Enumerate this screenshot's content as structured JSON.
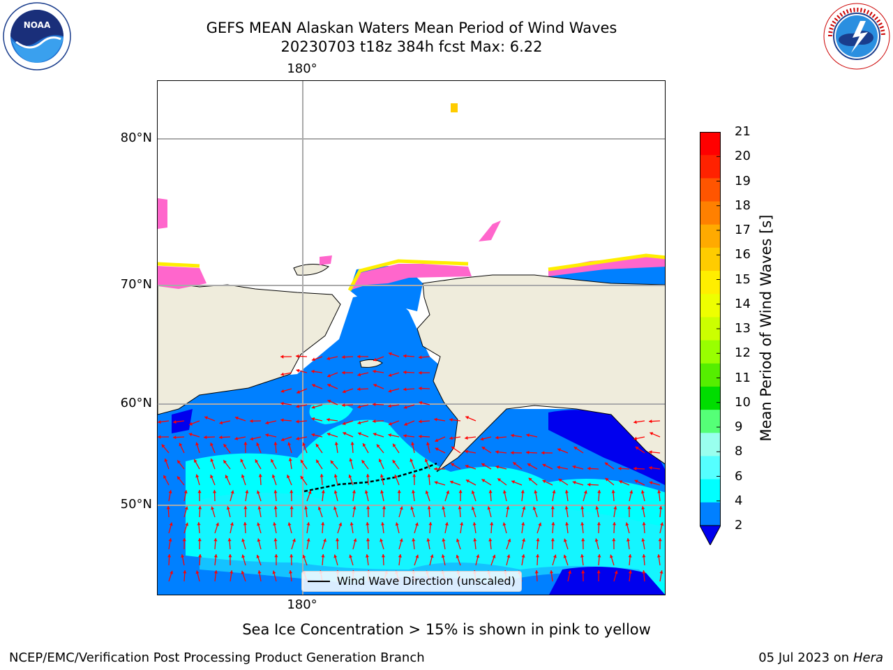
{
  "header": {
    "title_line1": "GEFS MEAN Alaskan Waters Mean Period of Wind Waves",
    "title_line2": "20230703 t18z 384h fcst   Max: 6.22"
  },
  "logos": {
    "left": {
      "text": "NOAA",
      "ring_text": "NATIONAL OCEANIC AND ATMOSPHERIC ADMINISTRATION · U.S. DEPARTMENT OF COMMERCE"
    },
    "right": {
      "ring_text": "NATIONAL WEATHER SERVICE"
    }
  },
  "map": {
    "lat_labels": [
      "80°N",
      "70°N",
      "60°N",
      "50°N"
    ],
    "lon_label_top": "180°",
    "lon_label_bottom": "180°",
    "legend_label": "Wind Wave Direction (unscaled)",
    "colors": {
      "land": "#efecdc",
      "ocean_2_4": "#0080ff",
      "ocean_4_6": "#00ffff",
      "ocean_lt_2": "#0000ee",
      "ice": "#ff66cc",
      "arrow": "#ff0000"
    }
  },
  "colorbar": {
    "title": "Mean Period of Wind Waves [s]",
    "ticks": [
      "21",
      "20",
      "19",
      "18",
      "17",
      "16",
      "15",
      "14",
      "13",
      "12",
      "11",
      "10",
      "9",
      "8",
      "6",
      "4",
      "2"
    ],
    "colors": [
      "#ff0000",
      "#ff2200",
      "#ff5500",
      "#ff8000",
      "#ffaa00",
      "#ffcc00",
      "#ffee00",
      "#eeff00",
      "#ccff00",
      "#99ff00",
      "#55ee00",
      "#00dd00",
      "#55ff77",
      "#99ffee",
      "#55ffff",
      "#00ffff",
      "#0080ff"
    ],
    "extend_color": "#0000ee"
  },
  "footer": {
    "note": "Sea Ice Concentration > 15% is shown in pink to yellow",
    "left": "NCEP/EMC/Verification Post Processing Product Generation Branch",
    "right_date": "05 Jul 2023 on ",
    "right_machine": "Hera"
  }
}
